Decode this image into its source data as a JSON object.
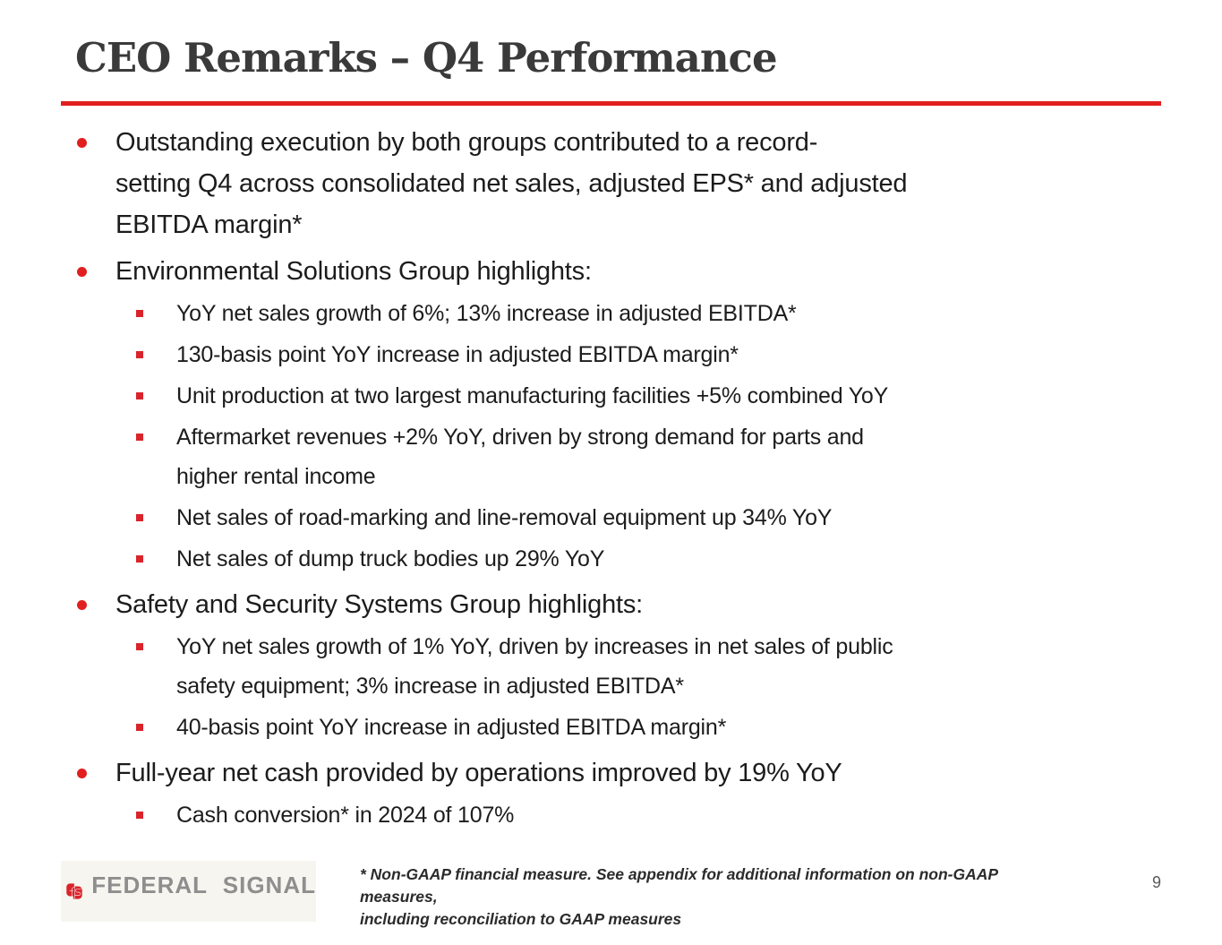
{
  "slide": {
    "title": "CEO Remarks – Q4 Performance",
    "accent_red": "#e21f1f",
    "logo_red": "#d9242b",
    "title_color": "#3a3a3a",
    "bullets": [
      {
        "level": 1,
        "text": "Outstanding execution by both groups contributed to a record-\nsetting Q4 across consolidated net sales, adjusted EPS* and adjusted\nEBITDA margin*"
      },
      {
        "level": 1,
        "text": "Environmental Solutions Group highlights:"
      },
      {
        "level": 2,
        "text": "YoY net sales growth of 6%; 13% increase in adjusted EBITDA*"
      },
      {
        "level": 2,
        "text": "130-basis point YoY increase in adjusted EBITDA margin*"
      },
      {
        "level": 2,
        "text": "Unit production at two largest manufacturing facilities +5% combined YoY"
      },
      {
        "level": 2,
        "text": "Aftermarket revenues +2% YoY, driven by strong demand for parts and\nhigher rental income"
      },
      {
        "level": 2,
        "text": "Net sales of road-marking and line-removal equipment up 34% YoY"
      },
      {
        "level": 2,
        "text": "Net sales of dump truck bodies up 29% YoY"
      },
      {
        "level": 1,
        "text": "Safety and Security Systems Group highlights:"
      },
      {
        "level": 2,
        "text": "YoY net sales growth of 1% YoY, driven by increases in net sales of public\nsafety equipment; 3% increase in adjusted EBITDA*"
      },
      {
        "level": 2,
        "text": "40-basis point YoY increase in adjusted EBITDA margin*"
      },
      {
        "level": 1,
        "text": "Full-year net cash provided by operations improved by 19% YoY"
      },
      {
        "level": 2,
        "text": "Cash conversion* in 2024 of 107%"
      }
    ],
    "footer": {
      "brand": "FEDERAL SIGNAL",
      "footnote": "* Non-GAAP financial measure. See appendix for additional information on non-GAAP measures,\nincluding reconciliation to GAAP measures",
      "page_number": "9"
    }
  }
}
